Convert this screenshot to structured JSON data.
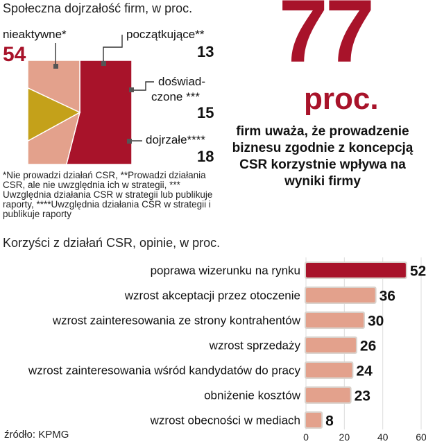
{
  "pie_title": "Społeczna dojrzałość firm, w proc.",
  "pie_labels": {
    "nieaktywne": "nieaktywne*",
    "poczatkujace": "początkujące**",
    "doswiadczone_1": "doświad-",
    "doswiadczone_2": "czone ***",
    "dojrzale": "dojrzałe****"
  },
  "footnote": "*Nie prowadzi działań CSR, **Prowadzi działania CSR, ale nie uwzględnia ich w strategii, *** Uwzględnia działania CSR w strategii lub publikuje raporty, ****Uwzględnia działania CSR w strategii i publikuje raporty",
  "headline_number": "77",
  "headline_unit": "proc.",
  "headline_text": "firm uważa, że prowadzenie biznesu zgodnie z koncepcją CSR korzystnie wpływa na wyniki firmy",
  "bar_title": "Korzyści z działań CSR, opinie, w proc.",
  "source": "źródło: KPMG",
  "colors": {
    "accent": "#a8132a",
    "salmon": "#e3a18c",
    "gold": "#c4a11a",
    "bar_outline": "#d9d2cc"
  },
  "chart_data": [
    {
      "type": "pie",
      "title": "Społeczna dojrzałość firm, w proc.",
      "slices": [
        {
          "label": "nieaktywne*",
          "value": 54,
          "color": "#a8132a"
        },
        {
          "label": "początkujące**",
          "value": 13,
          "color": "#e3a18c"
        },
        {
          "label": "doświadczone ***",
          "value": 15,
          "color": "#c4a11a"
        },
        {
          "label": "dojrzałe****",
          "value": 18,
          "color": "#e3a18c"
        }
      ]
    },
    {
      "type": "bar",
      "orientation": "horizontal",
      "title": "Korzyści z działań CSR, opinie, w proc.",
      "categories": [
        "poprawa wizerunku na rynku",
        "wzrost akceptacji przez otoczenie",
        "wzrost zainteresowania ze strony kontrahentów",
        "wzrost sprzedaży",
        "wzrost zainteresowania wśród kandydatów do pracy",
        "obniżenie kosztów",
        "wzrost obecności w mediach"
      ],
      "values": [
        52,
        36,
        30,
        26,
        24,
        23,
        8
      ],
      "xlim": [
        0,
        60
      ],
      "xticks": [
        "0",
        "20",
        "40",
        "60"
      ],
      "highlight_index": 0
    }
  ]
}
